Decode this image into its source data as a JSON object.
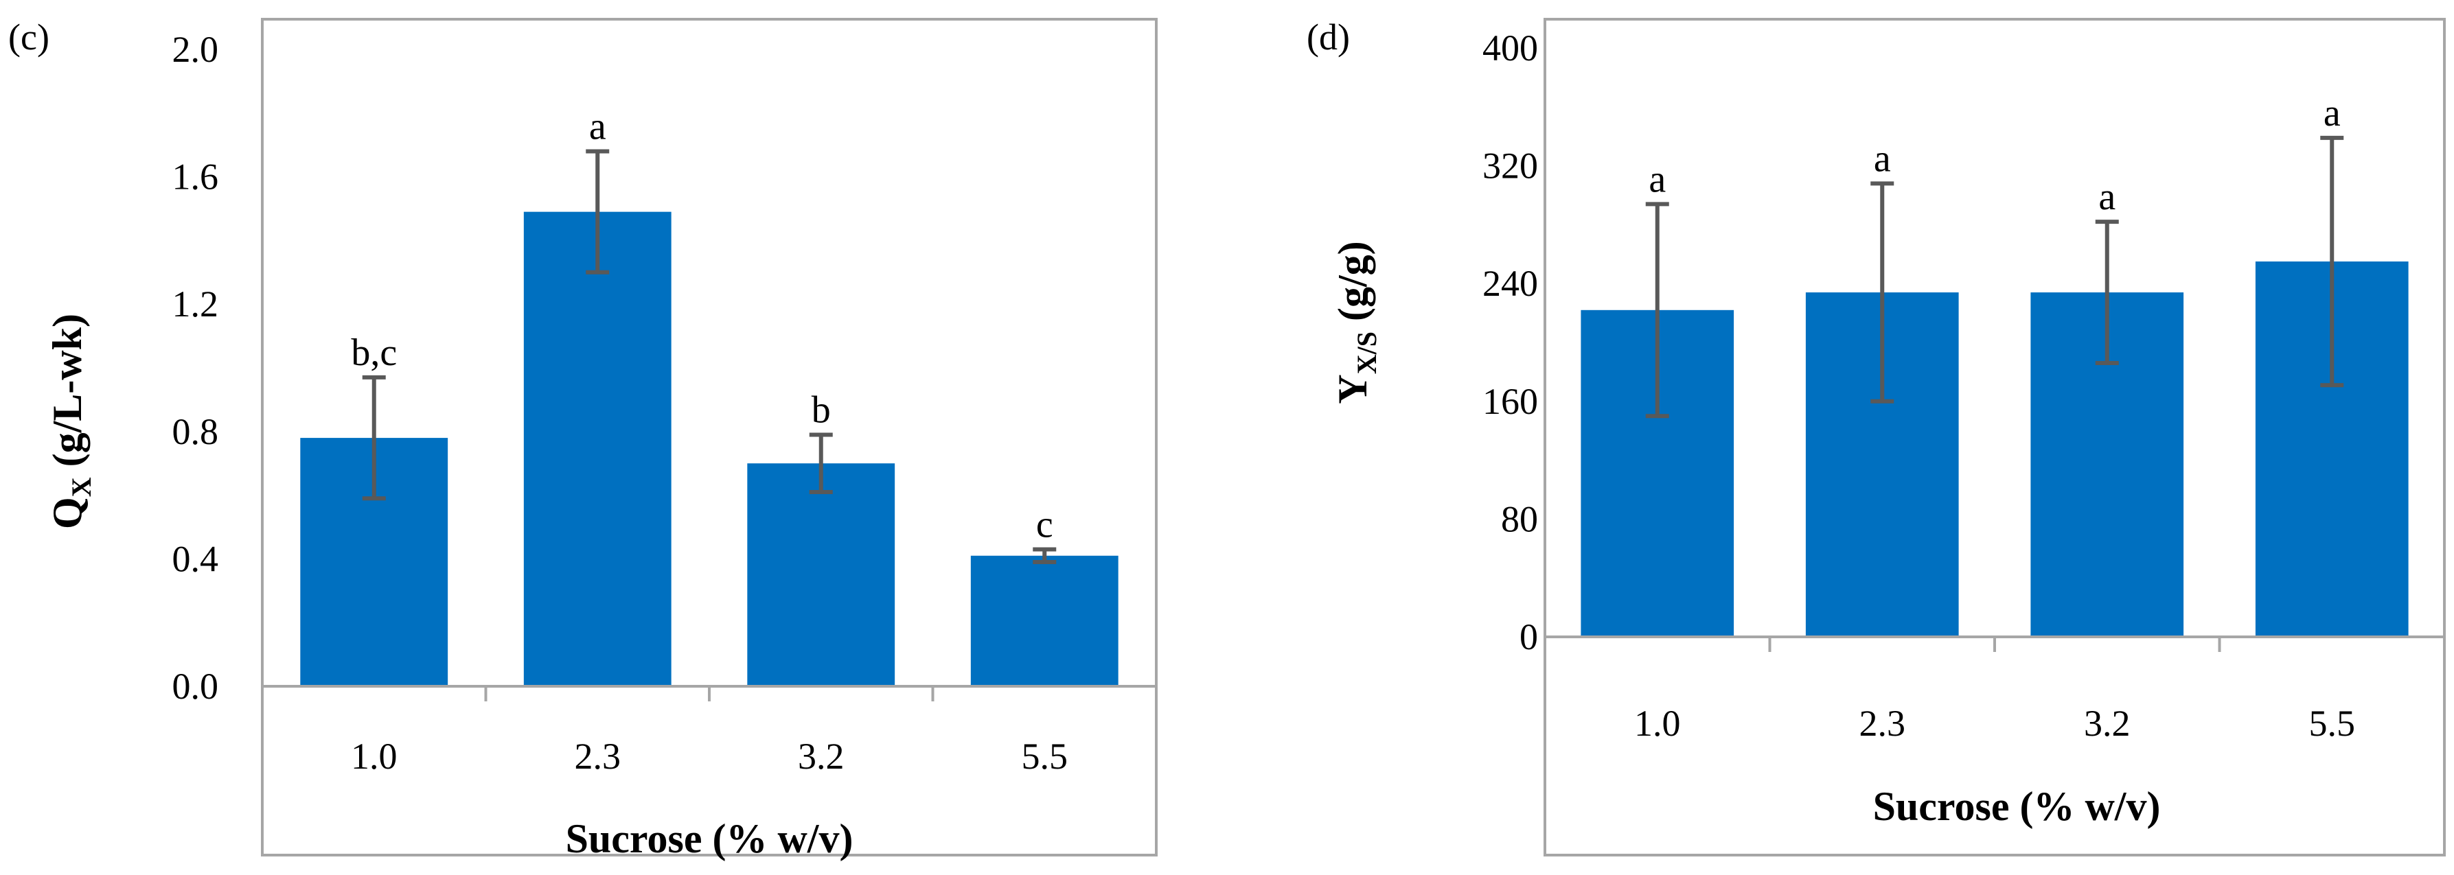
{
  "chart_data": [
    {
      "type": "bar",
      "panel_label": "(c)",
      "categories": [
        "1.0",
        "2.3",
        "3.2",
        "5.5"
      ],
      "values": [
        0.78,
        1.49,
        0.7,
        0.41
      ],
      "errors": [
        0.19,
        0.19,
        0.09,
        0.02
      ],
      "significance": [
        "b,c",
        "a",
        "b",
        "c"
      ],
      "ylim": [
        0,
        2.0
      ],
      "yticks": [
        "0.0",
        "0.4",
        "0.8",
        "1.2",
        "1.6",
        "2.0"
      ],
      "ylabel_main": "Q",
      "ylabel_sub": "X",
      "ylabel_rest": " (g/L-wk)",
      "xlabel": "Sucrose (% w/v)",
      "color": "#0070c0"
    },
    {
      "type": "bar",
      "panel_label": "(d)",
      "categories": [
        "1.0",
        "2.3",
        "3.2",
        "5.5"
      ],
      "values": [
        222,
        234,
        234,
        255
      ],
      "errors": [
        72,
        74,
        48,
        84
      ],
      "significance": [
        "a",
        "a",
        "a",
        "a"
      ],
      "ylim": [
        0,
        400
      ],
      "yticks": [
        "0",
        "80",
        "160",
        "240",
        "320",
        "400"
      ],
      "ylabel_main": "Y",
      "ylabel_sub": "X/S",
      "ylabel_rest": " (g/g)",
      "xlabel": "Sucrose (% w/v)",
      "color": "#0070c0"
    }
  ]
}
